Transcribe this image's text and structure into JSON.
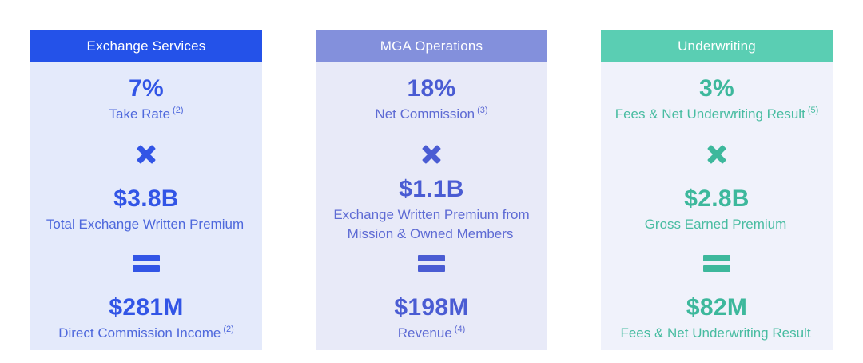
{
  "page": {
    "background": "#ffffff"
  },
  "operators": {
    "multiply_icon_symbol": "×",
    "equals_icon_symbol": "="
  },
  "cards": [
    {
      "id": "exchange-services",
      "title": "Exchange Services",
      "colors": {
        "header_bg": "#2452E9",
        "body_bg": "#E4EAFB",
        "accent": "#3255E6",
        "label": "#4E68DC"
      },
      "stats": {
        "rate": {
          "value": "7%",
          "label": "Take Rate",
          "footnote": "(2)"
        },
        "base": {
          "value": "$3.8B",
          "label": "Total Exchange Written Premium",
          "footnote": ""
        },
        "result": {
          "value": "$281M",
          "label": "Direct Commission Income",
          "footnote": "(2)"
        }
      }
    },
    {
      "id": "mga-operations",
      "title": "MGA Operations",
      "colors": {
        "header_bg": "#8390DC",
        "body_bg": "#E8EAF8",
        "accent": "#4A5CD3",
        "label": "#5E6BD4"
      },
      "stats": {
        "rate": {
          "value": "18%",
          "label": "Net Commission",
          "footnote": "(3)"
        },
        "base": {
          "value": "$1.1B",
          "label": "Exchange Written Premium from Mission & Owned Members",
          "footnote": ""
        },
        "result": {
          "value": "$198M",
          "label": "Revenue",
          "footnote": "(4)"
        }
      }
    },
    {
      "id": "underwriting",
      "title": "Underwriting",
      "colors": {
        "header_bg": "#5ACEB3",
        "body_bg": "#F0F2FB",
        "accent": "#3DB89C",
        "label": "#48BCA1"
      },
      "stats": {
        "rate": {
          "value": "3%",
          "label": "Fees & Net Underwriting Result",
          "footnote": "(5)"
        },
        "base": {
          "value": "$2.8B",
          "label": "Gross Earned Premium",
          "footnote": ""
        },
        "result": {
          "value": "$82M",
          "label": "Fees & Net Underwriting Result",
          "footnote": ""
        }
      }
    }
  ]
}
